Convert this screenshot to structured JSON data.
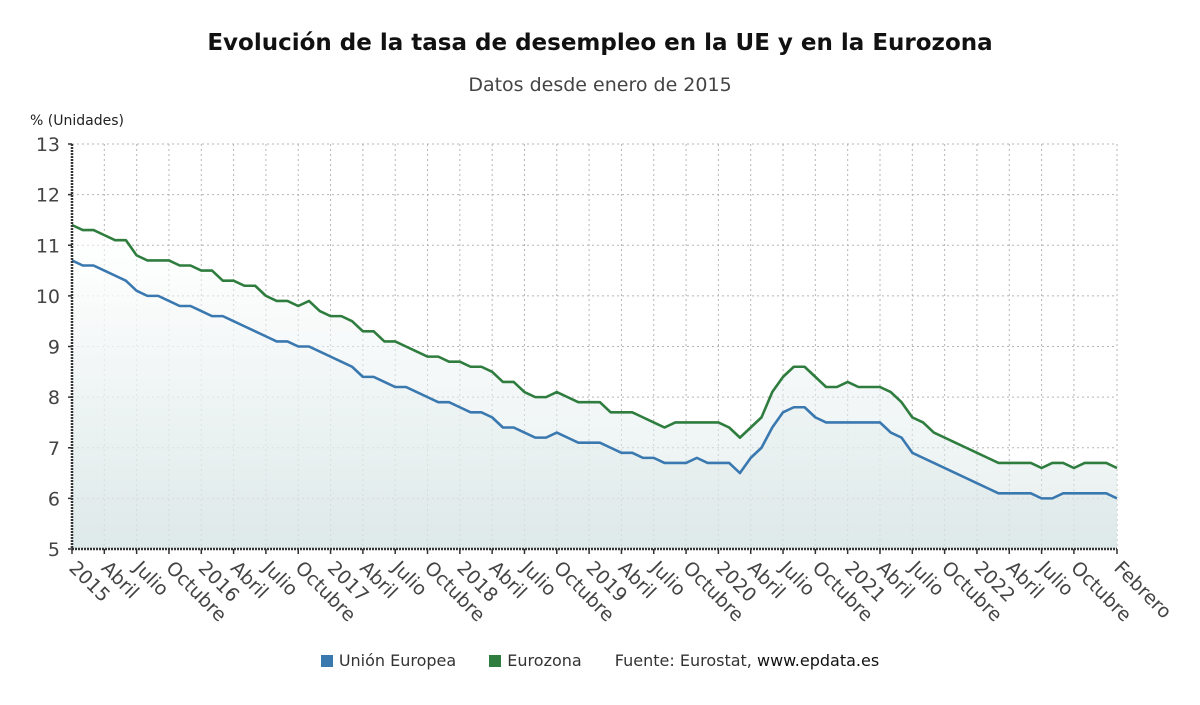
{
  "chart_data": {
    "type": "line",
    "title": "Evolución de la tasa de desempleo en la UE y en la Eurozona",
    "subtitle": "Datos desde enero de 2015",
    "ylabel": "% (Unidades)",
    "xlabel": "",
    "ylim": [
      5,
      13
    ],
    "yticks": [
      "5",
      "6",
      "7",
      "8",
      "9",
      "10",
      "11",
      "12",
      "13"
    ],
    "x_start": "2015-01",
    "x_end": "2023-02",
    "xtick_labels": [
      "2015",
      "Abril",
      "Julio",
      "Octubre",
      "2016",
      "Abril",
      "Julio",
      "Octubre",
      "2017",
      "Abril",
      "Julio",
      "Octubre",
      "2018",
      "Abril",
      "Julio",
      "Octubre",
      "2019",
      "Abril",
      "Julio",
      "Octubre",
      "2020",
      "Abril",
      "Julio",
      "Octubre",
      "2021",
      "Abril",
      "Julio",
      "Octubre",
      "2022",
      "Abril",
      "Julio",
      "Octubre",
      "Febrero"
    ],
    "xtick_months": [
      0,
      3,
      6,
      9,
      12,
      15,
      18,
      21,
      24,
      27,
      30,
      33,
      36,
      39,
      42,
      45,
      48,
      51,
      54,
      57,
      60,
      63,
      66,
      69,
      72,
      75,
      78,
      81,
      84,
      87,
      90,
      93,
      97
    ],
    "grid": true,
    "legend_position": "bottom",
    "series": [
      {
        "name": "Unión Europea",
        "color": "#3a78b0",
        "values": [
          10.7,
          10.6,
          10.6,
          10.5,
          10.4,
          10.3,
          10.1,
          10.0,
          10.0,
          9.9,
          9.8,
          9.8,
          9.7,
          9.6,
          9.6,
          9.5,
          9.4,
          9.3,
          9.2,
          9.1,
          9.1,
          9.0,
          9.0,
          8.9,
          8.8,
          8.7,
          8.6,
          8.4,
          8.4,
          8.3,
          8.2,
          8.2,
          8.1,
          8.0,
          7.9,
          7.9,
          7.8,
          7.7,
          7.7,
          7.6,
          7.4,
          7.4,
          7.3,
          7.2,
          7.2,
          7.3,
          7.2,
          7.1,
          7.1,
          7.1,
          7.0,
          6.9,
          6.9,
          6.8,
          6.8,
          6.7,
          6.7,
          6.7,
          6.8,
          6.7,
          6.7,
          6.7,
          6.5,
          6.8,
          7.0,
          7.4,
          7.7,
          7.8,
          7.8,
          7.6,
          7.5,
          7.5,
          7.5,
          7.5,
          7.5,
          7.5,
          7.3,
          7.2,
          6.9,
          6.8,
          6.7,
          6.6,
          6.5,
          6.4,
          6.3,
          6.2,
          6.1,
          6.1,
          6.1,
          6.1,
          6.0,
          6.0,
          6.1,
          6.1,
          6.1,
          6.1,
          6.1,
          6.0
        ]
      },
      {
        "name": "Eurozona",
        "color": "#2e7d3e",
        "values": [
          11.4,
          11.3,
          11.3,
          11.2,
          11.1,
          11.1,
          10.8,
          10.7,
          10.7,
          10.7,
          10.6,
          10.6,
          10.5,
          10.5,
          10.3,
          10.3,
          10.2,
          10.2,
          10.0,
          9.9,
          9.9,
          9.8,
          9.9,
          9.7,
          9.6,
          9.6,
          9.5,
          9.3,
          9.3,
          9.1,
          9.1,
          9.0,
          8.9,
          8.8,
          8.8,
          8.7,
          8.7,
          8.6,
          8.6,
          8.5,
          8.3,
          8.3,
          8.1,
          8.0,
          8.0,
          8.1,
          8.0,
          7.9,
          7.9,
          7.9,
          7.7,
          7.7,
          7.7,
          7.6,
          7.5,
          7.4,
          7.5,
          7.5,
          7.5,
          7.5,
          7.5,
          7.4,
          7.2,
          7.4,
          7.6,
          8.1,
          8.4,
          8.6,
          8.6,
          8.4,
          8.2,
          8.2,
          8.3,
          8.2,
          8.2,
          8.2,
          8.1,
          7.9,
          7.6,
          7.5,
          7.3,
          7.2,
          7.1,
          7.0,
          6.9,
          6.8,
          6.7,
          6.7,
          6.7,
          6.7,
          6.6,
          6.7,
          6.7,
          6.6,
          6.7,
          6.7,
          6.7,
          6.6
        ]
      }
    ]
  },
  "legend": {
    "items": [
      {
        "label": "Unión Europea",
        "color": "#3a78b0"
      },
      {
        "label": "Eurozona",
        "color": "#2e7d3e"
      }
    ],
    "source_prefix": "Fuente: Eurostat,",
    "source_site": "www.epdata.es"
  }
}
